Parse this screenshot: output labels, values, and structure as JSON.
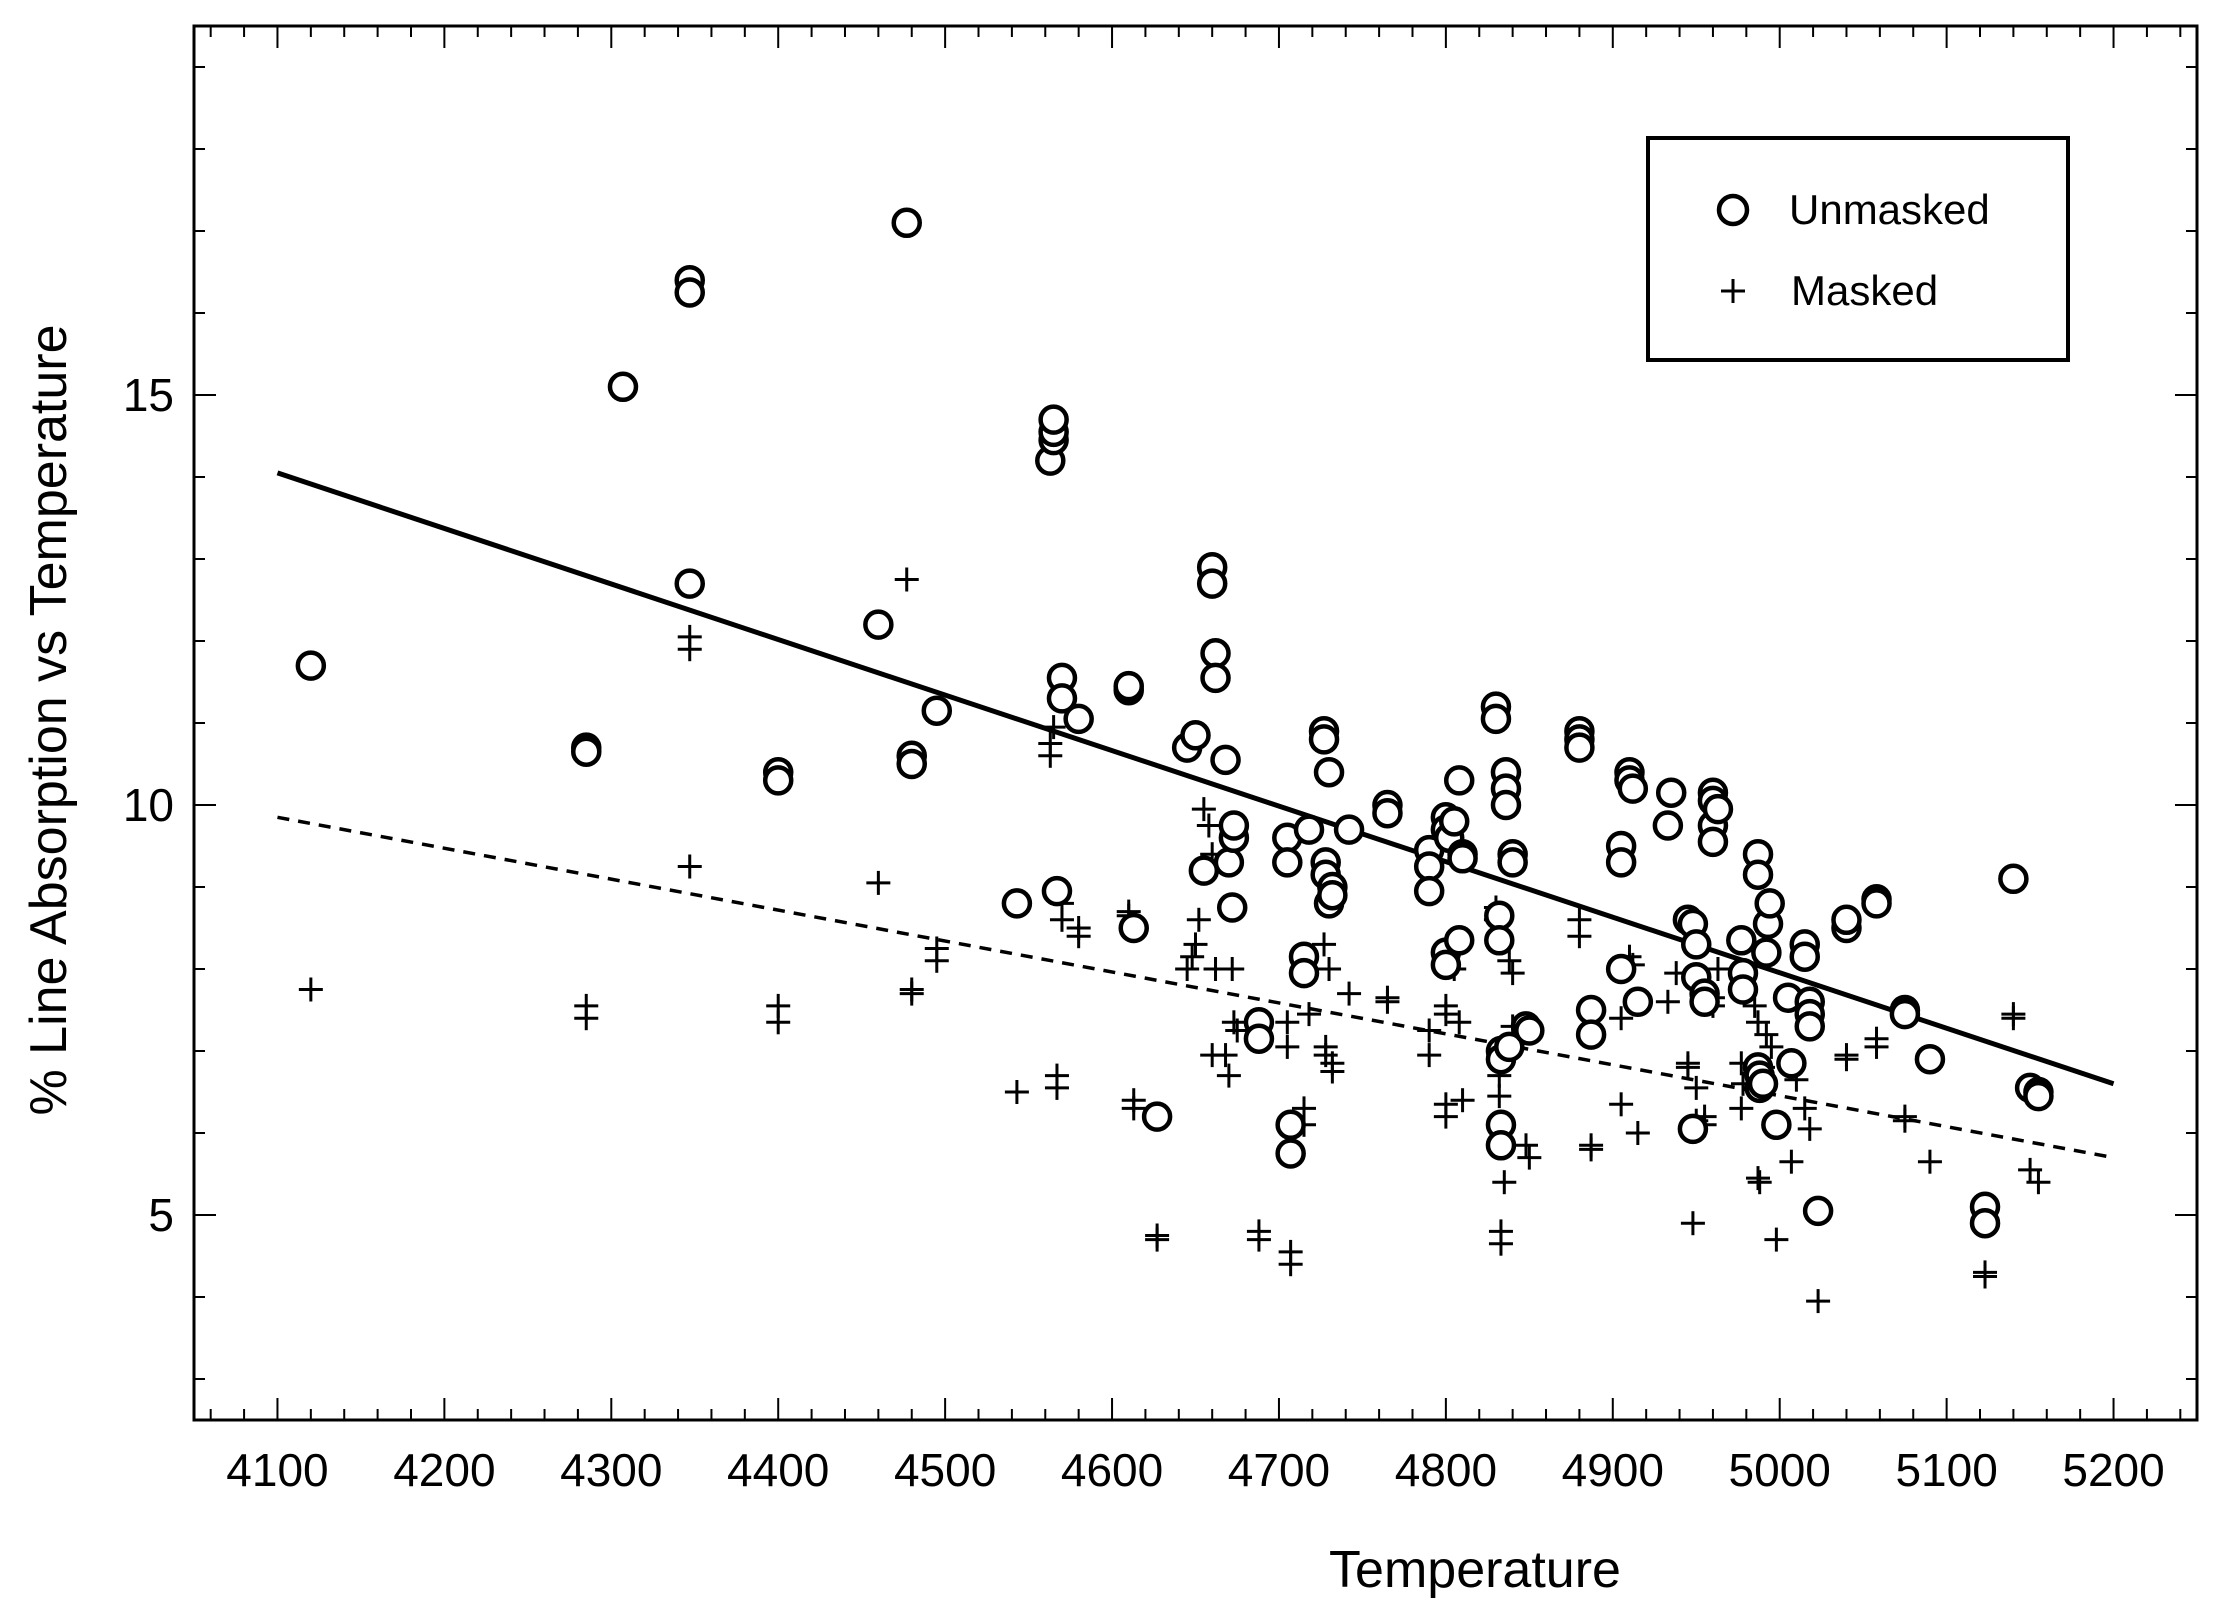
{
  "chart_data": {
    "type": "scatter",
    "xlabel": "Temperature",
    "ylabel": "% Line Absorption vs Temperature",
    "xlim": [
      4050,
      5250
    ],
    "ylim": [
      2.5,
      19.5
    ],
    "x_ticks": [
      4100,
      4200,
      4300,
      4400,
      4500,
      4600,
      4700,
      4800,
      4900,
      5000,
      5100,
      5200
    ],
    "y_ticks": [
      5,
      10,
      15
    ],
    "legend_position": "top-right",
    "series": [
      {
        "name": "Unmasked",
        "marker": "circle",
        "points": [
          [
            4120,
            11.7
          ],
          [
            4285,
            10.7
          ],
          [
            4285,
            10.65
          ],
          [
            4307,
            15.1
          ],
          [
            4347,
            16.4
          ],
          [
            4347,
            16.25
          ],
          [
            4347,
            12.7
          ],
          [
            4400,
            10.4
          ],
          [
            4400,
            10.3
          ],
          [
            4460,
            12.2
          ],
          [
            4477,
            17.1
          ],
          [
            4480,
            10.6
          ],
          [
            4480,
            10.5
          ],
          [
            4495,
            11.15
          ],
          [
            4543,
            8.8
          ],
          [
            4563,
            14.2
          ],
          [
            4565,
            14.45
          ],
          [
            4565,
            14.55
          ],
          [
            4565,
            14.7
          ],
          [
            4567,
            8.95
          ],
          [
            4570,
            11.55
          ],
          [
            4570,
            11.3
          ],
          [
            4580,
            11.05
          ],
          [
            4610,
            11.4
          ],
          [
            4610,
            11.45
          ],
          [
            4613,
            8.5
          ],
          [
            4627,
            6.2
          ],
          [
            4645,
            10.7
          ],
          [
            4650,
            10.85
          ],
          [
            4655,
            9.2
          ],
          [
            4660,
            12.9
          ],
          [
            4660,
            12.7
          ],
          [
            4662,
            11.85
          ],
          [
            4662,
            11.55
          ],
          [
            4668,
            10.55
          ],
          [
            4670,
            9.3
          ],
          [
            4672,
            8.75
          ],
          [
            4673,
            9.6
          ],
          [
            4673,
            9.75
          ],
          [
            4688,
            7.35
          ],
          [
            4688,
            7.15
          ],
          [
            4705,
            9.6
          ],
          [
            4705,
            9.3
          ],
          [
            4707,
            6.1
          ],
          [
            4707,
            5.75
          ],
          [
            4715,
            8.15
          ],
          [
            4715,
            7.95
          ],
          [
            4718,
            9.7
          ],
          [
            4727,
            10.9
          ],
          [
            4727,
            10.8
          ],
          [
            4728,
            9.3
          ],
          [
            4728,
            9.15
          ],
          [
            4730,
            10.4
          ],
          [
            4730,
            8.8
          ],
          [
            4732,
            9.0
          ],
          [
            4732,
            8.9
          ],
          [
            4742,
            9.7
          ],
          [
            4765,
            10.0
          ],
          [
            4765,
            9.9
          ],
          [
            4790,
            9.45
          ],
          [
            4790,
            9.25
          ],
          [
            4790,
            8.95
          ],
          [
            4800,
            9.85
          ],
          [
            4800,
            9.7
          ],
          [
            4802,
            9.6
          ],
          [
            4800,
            8.2
          ],
          [
            4800,
            8.05
          ],
          [
            4805,
            9.8
          ],
          [
            4808,
            10.3
          ],
          [
            4808,
            8.35
          ],
          [
            4810,
            9.4
          ],
          [
            4810,
            9.35
          ],
          [
            4830,
            11.2
          ],
          [
            4830,
            11.05
          ],
          [
            4832,
            8.65
          ],
          [
            4832,
            8.35
          ],
          [
            4833,
            7.0
          ],
          [
            4833,
            6.9
          ],
          [
            4833,
            6.1
          ],
          [
            4833,
            5.85
          ],
          [
            4836,
            10.4
          ],
          [
            4836,
            10.2
          ],
          [
            4836,
            10.0
          ],
          [
            4838,
            7.05
          ],
          [
            4840,
            9.4
          ],
          [
            4840,
            9.3
          ],
          [
            4848,
            7.3
          ],
          [
            4850,
            7.25
          ],
          [
            4880,
            10.9
          ],
          [
            4880,
            10.8
          ],
          [
            4880,
            10.7
          ],
          [
            4887,
            7.5
          ],
          [
            4887,
            7.2
          ],
          [
            4905,
            9.5
          ],
          [
            4905,
            9.3
          ],
          [
            4910,
            10.4
          ],
          [
            4910,
            10.3
          ],
          [
            4912,
            10.2
          ],
          [
            4905,
            8.0
          ],
          [
            4915,
            7.6
          ],
          [
            4933,
            9.75
          ],
          [
            4935,
            10.15
          ],
          [
            4945,
            8.6
          ],
          [
            4948,
            8.55
          ],
          [
            4948,
            6.05
          ],
          [
            4950,
            8.3
          ],
          [
            4950,
            7.9
          ],
          [
            4955,
            7.7
          ],
          [
            4955,
            7.6
          ],
          [
            4960,
            10.15
          ],
          [
            4960,
            10.05
          ],
          [
            4960,
            9.75
          ],
          [
            4960,
            9.55
          ],
          [
            4963,
            9.95
          ],
          [
            4977,
            8.35
          ],
          [
            4978,
            7.95
          ],
          [
            4978,
            7.75
          ],
          [
            4987,
            9.4
          ],
          [
            4987,
            9.15
          ],
          [
            4987,
            6.8
          ],
          [
            4988,
            6.7
          ],
          [
            4988,
            6.55
          ],
          [
            4990,
            6.6
          ],
          [
            4992,
            8.2
          ],
          [
            4993,
            8.55
          ],
          [
            4994,
            8.8
          ],
          [
            4998,
            6.1
          ],
          [
            5005,
            7.65
          ],
          [
            5007,
            6.85
          ],
          [
            5015,
            8.3
          ],
          [
            5015,
            8.15
          ],
          [
            5018,
            7.6
          ],
          [
            5018,
            7.45
          ],
          [
            5018,
            7.3
          ],
          [
            5023,
            5.05
          ],
          [
            5040,
            8.5
          ],
          [
            5040,
            8.6
          ],
          [
            5058,
            8.85
          ],
          [
            5058,
            8.8
          ],
          [
            5075,
            7.5
          ],
          [
            5075,
            7.45
          ],
          [
            5090,
            6.9
          ],
          [
            5123,
            5.1
          ],
          [
            5123,
            4.9
          ],
          [
            5140,
            9.1
          ],
          [
            5150,
            6.55
          ],
          [
            5155,
            6.5
          ],
          [
            5155,
            6.45
          ]
        ]
      },
      {
        "name": "Masked",
        "marker": "plus",
        "points": [
          [
            4120,
            7.75
          ],
          [
            4285,
            7.55
          ],
          [
            4285,
            7.4
          ],
          [
            4347,
            9.25
          ],
          [
            4347,
            12.05
          ],
          [
            4347,
            11.9
          ],
          [
            4400,
            7.55
          ],
          [
            4400,
            7.35
          ],
          [
            4460,
            9.05
          ],
          [
            4477,
            12.75
          ],
          [
            4480,
            7.75
          ],
          [
            4480,
            7.7
          ],
          [
            4495,
            8.25
          ],
          [
            4495,
            8.1
          ],
          [
            4543,
            6.5
          ],
          [
            4563,
            10.75
          ],
          [
            4563,
            10.6
          ],
          [
            4565,
            10.95
          ],
          [
            4567,
            6.7
          ],
          [
            4567,
            6.55
          ],
          [
            4570,
            8.8
          ],
          [
            4570,
            8.6
          ],
          [
            4580,
            8.5
          ],
          [
            4580,
            8.4
          ],
          [
            4610,
            8.65
          ],
          [
            4610,
            8.7
          ],
          [
            4613,
            6.4
          ],
          [
            4613,
            6.3
          ],
          [
            4627,
            4.75
          ],
          [
            4627,
            4.7
          ],
          [
            4645,
            8.0
          ],
          [
            4648,
            8.15
          ],
          [
            4650,
            8.3
          ],
          [
            4652,
            8.6
          ],
          [
            4655,
            9.95
          ],
          [
            4658,
            9.75
          ],
          [
            4660,
            9.4
          ],
          [
            4660,
            6.95
          ],
          [
            4662,
            8.0
          ],
          [
            4668,
            6.95
          ],
          [
            4670,
            6.7
          ],
          [
            4672,
            8.0
          ],
          [
            4673,
            7.35
          ],
          [
            4675,
            7.25
          ],
          [
            4688,
            4.8
          ],
          [
            4688,
            4.7
          ],
          [
            4705,
            7.35
          ],
          [
            4705,
            7.05
          ],
          [
            4707,
            4.55
          ],
          [
            4707,
            4.4
          ],
          [
            4715,
            6.3
          ],
          [
            4715,
            6.1
          ],
          [
            4718,
            7.45
          ],
          [
            4727,
            8.3
          ],
          [
            4728,
            7.05
          ],
          [
            4728,
            6.95
          ],
          [
            4730,
            8.0
          ],
          [
            4732,
            6.85
          ],
          [
            4732,
            6.75
          ],
          [
            4742,
            7.7
          ],
          [
            4765,
            7.65
          ],
          [
            4765,
            7.6
          ],
          [
            4790,
            7.25
          ],
          [
            4790,
            6.95
          ],
          [
            4800,
            7.55
          ],
          [
            4800,
            7.45
          ],
          [
            4800,
            6.35
          ],
          [
            4800,
            6.2
          ],
          [
            4805,
            8.0
          ],
          [
            4808,
            7.35
          ],
          [
            4810,
            6.4
          ],
          [
            4830,
            8.75
          ],
          [
            4830,
            8.6
          ],
          [
            4832,
            6.7
          ],
          [
            4832,
            6.45
          ],
          [
            4833,
            4.8
          ],
          [
            4833,
            4.65
          ],
          [
            4835,
            5.4
          ],
          [
            4838,
            8.1
          ],
          [
            4840,
            7.95
          ],
          [
            4840,
            7.3
          ],
          [
            4848,
            5.85
          ],
          [
            4850,
            5.7
          ],
          [
            4880,
            8.6
          ],
          [
            4880,
            8.4
          ],
          [
            4887,
            5.85
          ],
          [
            4887,
            5.8
          ],
          [
            4905,
            7.4
          ],
          [
            4905,
            6.35
          ],
          [
            4910,
            8.15
          ],
          [
            4912,
            8.05
          ],
          [
            4915,
            6.0
          ],
          [
            4933,
            7.6
          ],
          [
            4938,
            7.95
          ],
          [
            4945,
            6.85
          ],
          [
            4945,
            6.8
          ],
          [
            4948,
            4.9
          ],
          [
            4950,
            6.55
          ],
          [
            4950,
            6.15
          ],
          [
            4955,
            6.2
          ],
          [
            4955,
            6.1
          ],
          [
            4960,
            7.65
          ],
          [
            4960,
            7.55
          ],
          [
            4963,
            8.0
          ],
          [
            4977,
            6.85
          ],
          [
            4977,
            6.3
          ],
          [
            4978,
            6.6
          ],
          [
            4985,
            7.55
          ],
          [
            4987,
            7.35
          ],
          [
            4987,
            5.45
          ],
          [
            4988,
            5.4
          ],
          [
            4990,
            6.8
          ],
          [
            4992,
            7.2
          ],
          [
            4995,
            7.05
          ],
          [
            4998,
            4.7
          ],
          [
            5007,
            5.65
          ],
          [
            5010,
            6.65
          ],
          [
            5015,
            6.3
          ],
          [
            5018,
            6.05
          ],
          [
            5023,
            3.95
          ],
          [
            5040,
            6.95
          ],
          [
            5040,
            6.9
          ],
          [
            5058,
            7.15
          ],
          [
            5058,
            7.05
          ],
          [
            5075,
            6.2
          ],
          [
            5075,
            6.15
          ],
          [
            5090,
            5.65
          ],
          [
            5123,
            4.3
          ],
          [
            5123,
            4.25
          ],
          [
            5140,
            7.45
          ],
          [
            5140,
            7.4
          ],
          [
            5150,
            5.55
          ],
          [
            5155,
            5.4
          ]
        ]
      }
    ],
    "fit_lines": [
      {
        "style": "solid",
        "x": [
          4100,
          5200
        ],
        "y": [
          14.05,
          6.6
        ]
      },
      {
        "style": "dashed",
        "x": [
          4100,
          5200
        ],
        "y": [
          9.85,
          5.7
        ]
      }
    ]
  }
}
